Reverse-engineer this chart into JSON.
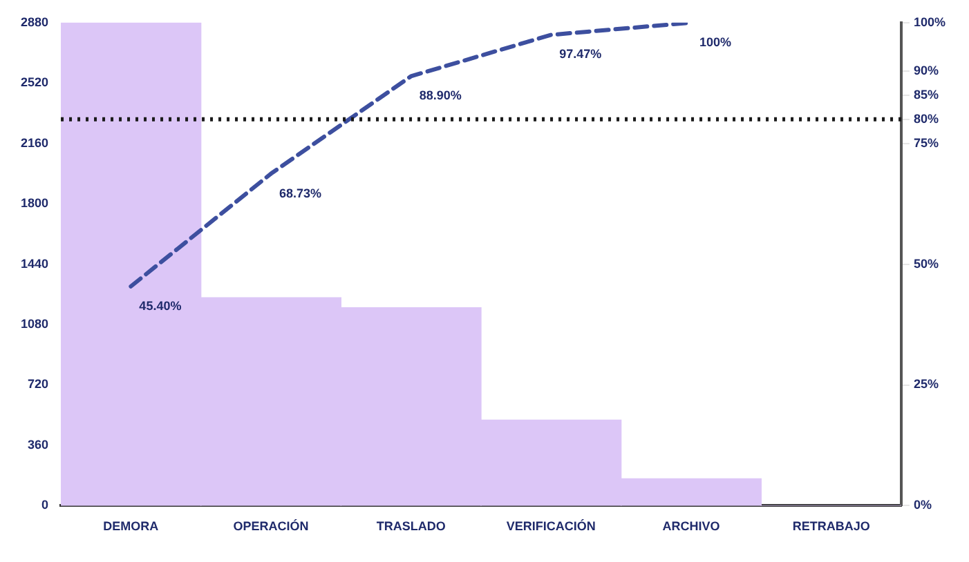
{
  "chart_data": {
    "type": "bar",
    "categories": [
      "DEMORA",
      "OPERACIÓN",
      "TRASLADO",
      "VERIFICACIÓN",
      "ARCHIVO",
      "RETRABAJO"
    ],
    "series": [
      {
        "color": "#dcc6f7",
        "values": [
          2880,
          1240,
          1180,
          510,
          160,
          0
        ]
      },
      {
        "type": "line",
        "axis": "y2",
        "color": "#3d4f9f",
        "line_style": "dashed",
        "values": [
          45.4,
          68.73,
          88.9,
          97.47,
          100,
          null
        ],
        "value_labels": [
          "45.40%",
          "68.73%",
          "88.90%",
          "97.47%",
          "100%",
          null
        ]
      }
    ],
    "ylim": [
      0,
      2880
    ],
    "yticks": [
      0,
      360,
      720,
      1080,
      1440,
      1800,
      2160,
      2520,
      2880
    ],
    "y2lim": [
      0,
      100
    ],
    "y2ticks": [
      {
        "value": 0,
        "label": "0%"
      },
      {
        "value": 25,
        "label": "25%"
      },
      {
        "value": 50,
        "label": "50%"
      },
      {
        "value": 75,
        "label": "75%"
      },
      {
        "value": 80,
        "label": "80%"
      },
      {
        "value": 85,
        "label": "85%"
      },
      {
        "value": 90,
        "label": "90%"
      },
      {
        "value": 100,
        "label": "100%"
      }
    ],
    "ref_lines": [
      {
        "axis": "y2",
        "value": 80,
        "color": "#1a1a1a",
        "line_style": "dotted"
      }
    ],
    "grid": false,
    "legend": false,
    "marker": "none"
  }
}
